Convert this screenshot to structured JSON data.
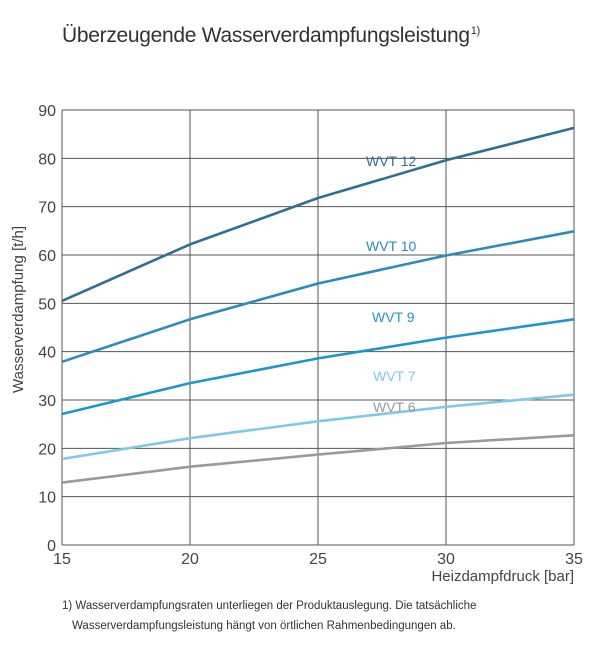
{
  "title": "Überzeugende Wasserverdampfungsleistung",
  "title_sup": "1)",
  "footnote": {
    "line1": "1) Wasserverdampfungsraten unterliegen der Produktauslegung. Die tatsächliche",
    "line2": "Wasserverdampfungsleistung hängt von örtlichen Rahmenbedingungen ab."
  },
  "chart_data": {
    "type": "line",
    "title": "Überzeugende Wasserverdampfungsleistung",
    "xlabel": "Heizdampfdruck [bar]",
    "ylabel": "Wasserverdampfung [t/h]",
    "xlim": [
      15,
      35
    ],
    "ylim": [
      0,
      90
    ],
    "xticks": [
      15,
      20,
      25,
      30,
      35
    ],
    "yticks": [
      0,
      10,
      20,
      30,
      40,
      50,
      60,
      70,
      80,
      90
    ],
    "grid": true,
    "legend": "inline-labels",
    "series": [
      {
        "name": "WVT 12",
        "color": "#2e6f94",
        "x": [
          15,
          20,
          25,
          30,
          35
        ],
        "y": [
          50.5,
          62.2,
          71.8,
          79.6,
          86.3
        ]
      },
      {
        "name": "WVT 10",
        "color": "#2a8cbd",
        "x": [
          15,
          20,
          25,
          30,
          35
        ],
        "y": [
          37.9,
          46.7,
          54.1,
          59.9,
          64.9
        ]
      },
      {
        "name": "WVT 9",
        "color": "#1f95cf",
        "x": [
          15,
          20,
          25,
          30,
          35
        ],
        "y": [
          27.1,
          33.5,
          38.6,
          42.9,
          46.7
        ]
      },
      {
        "name": "WVT 7",
        "color": "#7cc9ea",
        "x": [
          15,
          20,
          25,
          30,
          35
        ],
        "y": [
          17.8,
          22.1,
          25.6,
          28.6,
          31.1
        ]
      },
      {
        "name": "WVT 6",
        "color": "#9a9a9a",
        "x": [
          15,
          20,
          25,
          30,
          35
        ],
        "y": [
          12.9,
          16.2,
          18.7,
          21.1,
          22.7
        ]
      }
    ]
  }
}
